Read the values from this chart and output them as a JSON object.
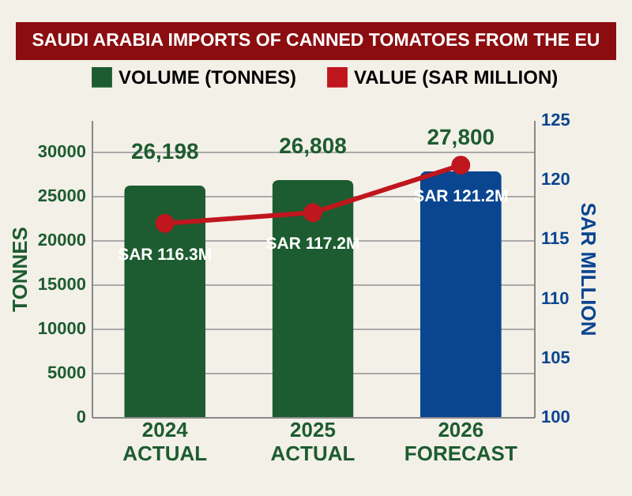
{
  "chart_data": {
    "type": "bar",
    "title": "SAUDI ARABIA IMPORTS OF CANNED TOMATOES FROM THE EU",
    "ylabel": "TONNES",
    "y2label": "SAR MILLION",
    "categories": [
      "2024 ACTUAL",
      "2025 ACTUAL",
      "2026 FORECAST"
    ],
    "series": [
      {
        "name": "VOLUME (TONNES)",
        "color": "#1d5c30",
        "colors": [
          "#1d5c30",
          "#1d5c30",
          "#0a4590"
        ],
        "values": [
          26198,
          26808,
          27800
        ],
        "value_labels": [
          "26,198",
          "26,808",
          "27,800"
        ]
      },
      {
        "name": "VALUE (SAR MILLION)",
        "type": "line",
        "axis": "y2",
        "color": "#c0161e",
        "marker": "circle",
        "values": [
          116.3,
          117.2,
          121.2
        ],
        "value_labels": [
          "SAR 116.3M",
          "SAR 117.2M",
          "SAR 121.2M"
        ]
      }
    ],
    "ylim": [
      0,
      33600
    ],
    "yticks": [
      0,
      5000,
      10000,
      15000,
      20000,
      25000,
      30000
    ],
    "y2lim": [
      100,
      125
    ],
    "y2ticks": [
      100,
      105,
      110,
      115,
      120,
      125
    ],
    "grid": "y",
    "legend": "top"
  }
}
